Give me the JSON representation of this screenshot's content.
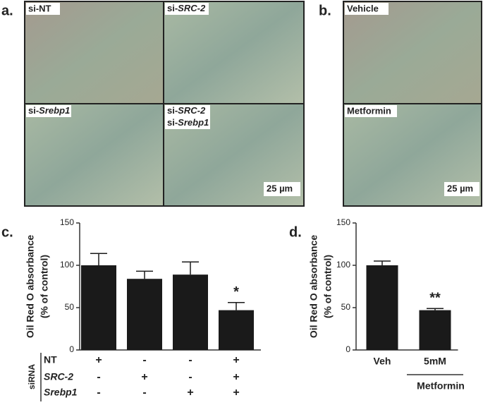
{
  "panels": {
    "a": "a.",
    "b": "b.",
    "c": "c.",
    "d": "d."
  },
  "images": {
    "a": {
      "nt": "si-NT",
      "src2_prefix": "si-",
      "src2_gene": "SRC-2",
      "srebp_prefix": "si-",
      "srebp_gene": "Srebp1",
      "both_prefix1": "si-",
      "both_gene1": "SRC-2",
      "both_prefix2": "si-",
      "both_gene2": "Srebp1",
      "scale": "25 µm"
    },
    "b": {
      "vehicle": "Vehicle",
      "metformin": "Metformin",
      "scale": "25 µm"
    }
  },
  "chart_data": [
    {
      "type": "bar",
      "ylabel": [
        "Oil Red O absorbance",
        "(% of control)"
      ],
      "ylim": [
        0,
        150
      ],
      "yticks": [
        0,
        50,
        100,
        150
      ],
      "color": "#1a1a1a",
      "values": [
        100,
        84,
        89,
        47
      ],
      "errors": [
        14,
        9,
        15,
        9
      ],
      "annotations": [
        null,
        null,
        null,
        "*"
      ],
      "table": {
        "title": "siRNA",
        "rows": [
          {
            "label": "NT",
            "italic": false,
            "cells": [
              "+",
              "-",
              "-",
              "+"
            ]
          },
          {
            "label": "SRC-2",
            "italic": true,
            "cells": [
              "-",
              "+",
              "-",
              "+"
            ]
          },
          {
            "label": "Srebp1",
            "italic": true,
            "cells": [
              "-",
              "-",
              "+",
              "+"
            ]
          }
        ]
      }
    },
    {
      "type": "bar",
      "ylabel": [
        "Oil Red O absorbance",
        "(% of control)"
      ],
      "ylim": [
        0,
        150
      ],
      "yticks": [
        0,
        50,
        100,
        150
      ],
      "color": "#1a1a1a",
      "categories": [
        "Veh",
        "5mM"
      ],
      "values": [
        100,
        47
      ],
      "errors": [
        5,
        2
      ],
      "annotations": [
        null,
        "**"
      ],
      "group_label": {
        "text": "Metformin",
        "category": 1
      }
    }
  ]
}
